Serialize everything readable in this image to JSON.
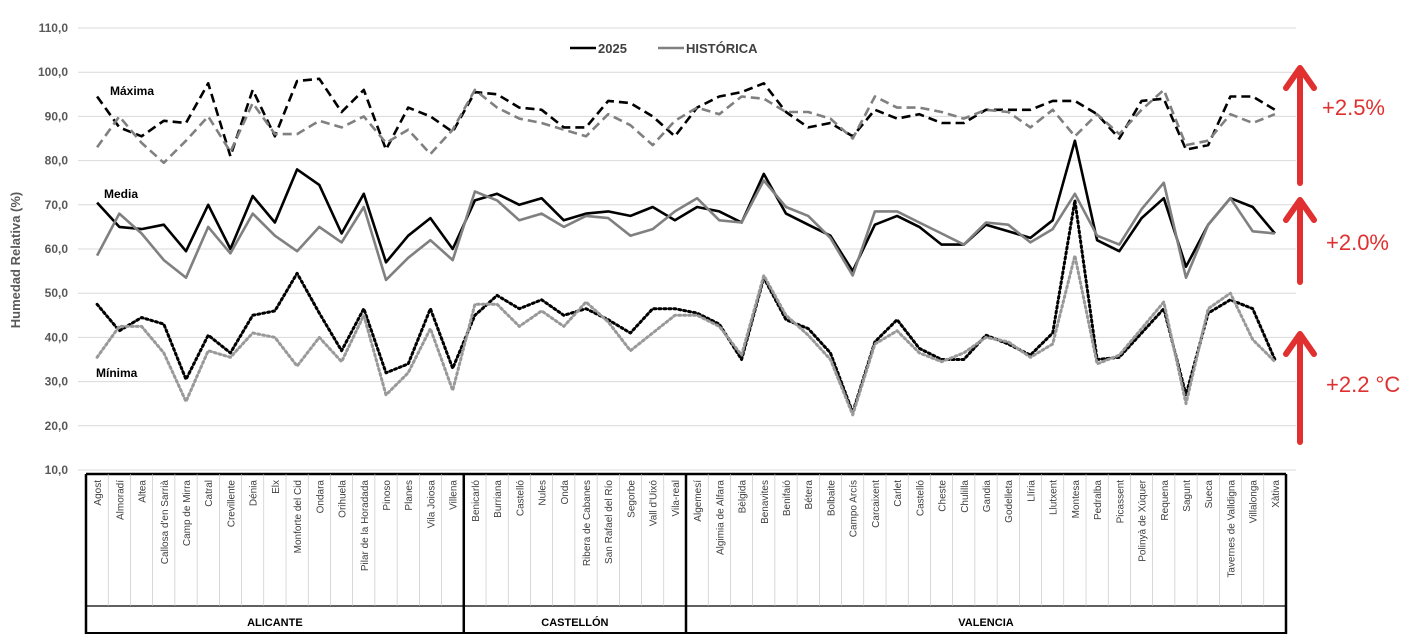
{
  "chart_data": {
    "type": "line",
    "ylabel": "Humedad Relativa (%)",
    "ylim": [
      10,
      110
    ],
    "yticks": [
      "10,0",
      "20,0",
      "30,0",
      "40,0",
      "50,0",
      "60,0",
      "70,0",
      "80,0",
      "90,0",
      "100,0",
      "110,0"
    ],
    "grid": true,
    "legend_placement": "top-center",
    "legend": [
      {
        "name": "2025",
        "color": "#000000"
      },
      {
        "name": "HISTÓRICA",
        "color": "#808080"
      }
    ],
    "categories": [
      "Agost",
      "Almoradí",
      "Altea",
      "Callosa d'en Sarrià",
      "Camp de Mirra",
      "Catral",
      "Crevillente",
      "Dénia",
      "Elx",
      "Monforte del Cid",
      "Ondara",
      "Orihuela",
      "Pilar de la Horadada",
      "Pinoso",
      "Planes",
      "Vila Joiosa",
      "Villena",
      "Benicarló",
      "Burriana",
      "Castelló",
      "Nules",
      "Onda",
      "Ribera de Cabanes",
      "San Rafael del Río",
      "Segorbe",
      "Vall d'Uixó",
      "Vila-real",
      "Algemesí",
      "Algimia de Alfara",
      "Bèlgida",
      "Benavites",
      "Benifaió",
      "Bétera",
      "Bolbaite",
      "Campo Arcís",
      "Carcaixent",
      "Carlet",
      "Castelló",
      "Cheste",
      "Chulilla",
      "Gandia",
      "Godelleta",
      "Llíria",
      "Llutxent",
      "Montesa",
      "Pedralba",
      "Picassent",
      "Polinyà de Xúquer",
      "Requena",
      "Sagunt",
      "Sueca",
      "Tavernes de Valldigna",
      "Villalonga",
      "Xàtiva"
    ],
    "groups": [
      {
        "name": "ALICANTE",
        "start": 0,
        "end": 16
      },
      {
        "name": "CASTELLÓN",
        "start": 17,
        "end": 26
      },
      {
        "name": "VALENCIA",
        "start": 27,
        "end": 53
      }
    ],
    "series": [
      {
        "line_label": "Máxima",
        "year": "2025",
        "color": "#000000",
        "dash": "dashed",
        "values": [
          94.5,
          87.5,
          85.5,
          89,
          88.5,
          97.5,
          81,
          96,
          85.5,
          98,
          98.5,
          91,
          96,
          82.5,
          92,
          90,
          86.5,
          95.5,
          95,
          92,
          91.5,
          87.5,
          87.5,
          93.5,
          93,
          90,
          85.5,
          92,
          94.5,
          95.5,
          97.5,
          91,
          87.5,
          88.5,
          85.5,
          91.5,
          89.5,
          90.5,
          88.5,
          88.5,
          91.5,
          91.5,
          91.5,
          93.5,
          93.5,
          90.5,
          85,
          93.5,
          94,
          82.5,
          83.5,
          94.5,
          94.5,
          91.5
        ]
      },
      {
        "line_label": "",
        "year": "HISTÓRICA",
        "color": "#808080",
        "dash": "dashed",
        "values": [
          83,
          90,
          84,
          79.5,
          84.5,
          90,
          82,
          93,
          86,
          86,
          89,
          87.5,
          90,
          84,
          87,
          81.5,
          87,
          96,
          92,
          89.5,
          88.5,
          87,
          85.5,
          90.5,
          88,
          83.5,
          89,
          92,
          90.5,
          94.5,
          94,
          91,
          91,
          89.5,
          85,
          94.5,
          92,
          92,
          91,
          89.5,
          91.5,
          91,
          87.5,
          91.5,
          85.5,
          90.5,
          86,
          91.5,
          96,
          83.5,
          84.5,
          90.5,
          88.5,
          90.5
        ]
      },
      {
        "line_label": "Media",
        "year": "2025",
        "color": "#000000",
        "dash": "solid",
        "values": [
          70.5,
          65,
          64.5,
          65.5,
          59.5,
          70,
          60,
          72,
          66,
          78,
          74.5,
          63.5,
          72.5,
          57,
          63,
          67,
          60,
          71,
          72.5,
          70,
          71.5,
          66.5,
          68,
          68.5,
          67.5,
          69.5,
          66.5,
          69.5,
          68.5,
          66,
          77,
          68,
          65.5,
          63,
          55,
          65.5,
          67.5,
          65,
          61,
          61,
          65.5,
          64,
          62.5,
          66.5,
          84.5,
          62,
          59.5,
          67,
          71.5,
          56,
          65.5,
          71.5,
          69.5,
          63.5
        ]
      },
      {
        "line_label": "",
        "year": "HISTÓRICA",
        "color": "#808080",
        "dash": "solid",
        "values": [
          58.5,
          68,
          63.5,
          57.5,
          53.5,
          65,
          59,
          68,
          63,
          59.5,
          65,
          61.5,
          69.5,
          53,
          58,
          62,
          57.5,
          73,
          71,
          66.5,
          68,
          65,
          67.5,
          67,
          63,
          64.5,
          68.5,
          71.5,
          66.5,
          66,
          75.5,
          69.5,
          67.5,
          62.5,
          54,
          68.5,
          68.5,
          66,
          63.5,
          61,
          66,
          65.5,
          61.5,
          64.5,
          72.5,
          63,
          61,
          69,
          75,
          53.5,
          65.5,
          71.5,
          64,
          63.5
        ]
      },
      {
        "line_label": "Mínima",
        "year": "2025",
        "color": "#000000",
        "dash": "dotted",
        "values": [
          47.5,
          41.5,
          44.5,
          43,
          30.5,
          40.5,
          36.5,
          45,
          46,
          54.5,
          45.5,
          37,
          46.5,
          32,
          34,
          46.5,
          33,
          45,
          49.5,
          46.5,
          48.5,
          45,
          46.5,
          44,
          41,
          46.5,
          46.5,
          45.5,
          43,
          35,
          53.5,
          44,
          42,
          36.5,
          23,
          39,
          44,
          37.5,
          35,
          35,
          40.5,
          38.5,
          36,
          41,
          71,
          35,
          35.5,
          41,
          46.5,
          27,
          45.5,
          48.5,
          46.5,
          35
        ]
      },
      {
        "line_label": "",
        "year": "HISTÓRICA",
        "color": "#999999",
        "dash": "dotted",
        "values": [
          35.5,
          42.5,
          42.5,
          36.5,
          25.5,
          37,
          35.5,
          41,
          40,
          33.5,
          40,
          34.5,
          45,
          27,
          32,
          42,
          28,
          47.5,
          47.5,
          42.5,
          46,
          42.5,
          48,
          43.5,
          37,
          41,
          45,
          45,
          42.5,
          36,
          54,
          45,
          40.5,
          35,
          22.5,
          38.5,
          41.5,
          36.5,
          34.5,
          36.5,
          40,
          39,
          35.5,
          38.5,
          58.5,
          34,
          36,
          42,
          48,
          25,
          46.5,
          50,
          39.5,
          34.5
        ]
      }
    ],
    "annotations": [
      {
        "text": "+2.5%",
        "color": "#e03030"
      },
      {
        "text": "+2.0%",
        "color": "#e03030"
      },
      {
        "text": "+2.2 °C",
        "color": "#e03030"
      }
    ]
  }
}
